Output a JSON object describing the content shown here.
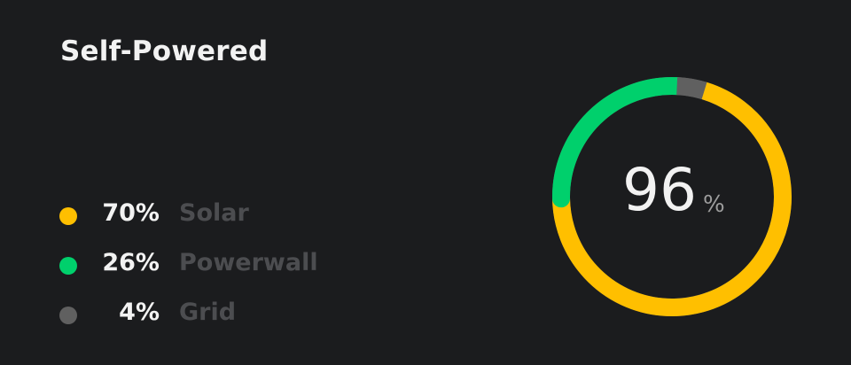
{
  "title": "Self-Powered",
  "legend": [
    {
      "percent": "70%",
      "label": "Solar",
      "color": "#ffbf00"
    },
    {
      "percent": "26%",
      "label": "Powerwall",
      "color": "#00d06c"
    },
    {
      "percent": "4%",
      "label": "Grid",
      "color": "#606060"
    }
  ],
  "gauge": {
    "value": "96",
    "unit": "%",
    "segments": [
      {
        "name": "Solar",
        "fraction": 0.7,
        "color": "#ffbf00"
      },
      {
        "name": "Powerwall",
        "fraction": 0.26,
        "color": "#00d06c"
      },
      {
        "name": "Grid",
        "fraction": 0.04,
        "color": "#606060"
      }
    ]
  }
}
